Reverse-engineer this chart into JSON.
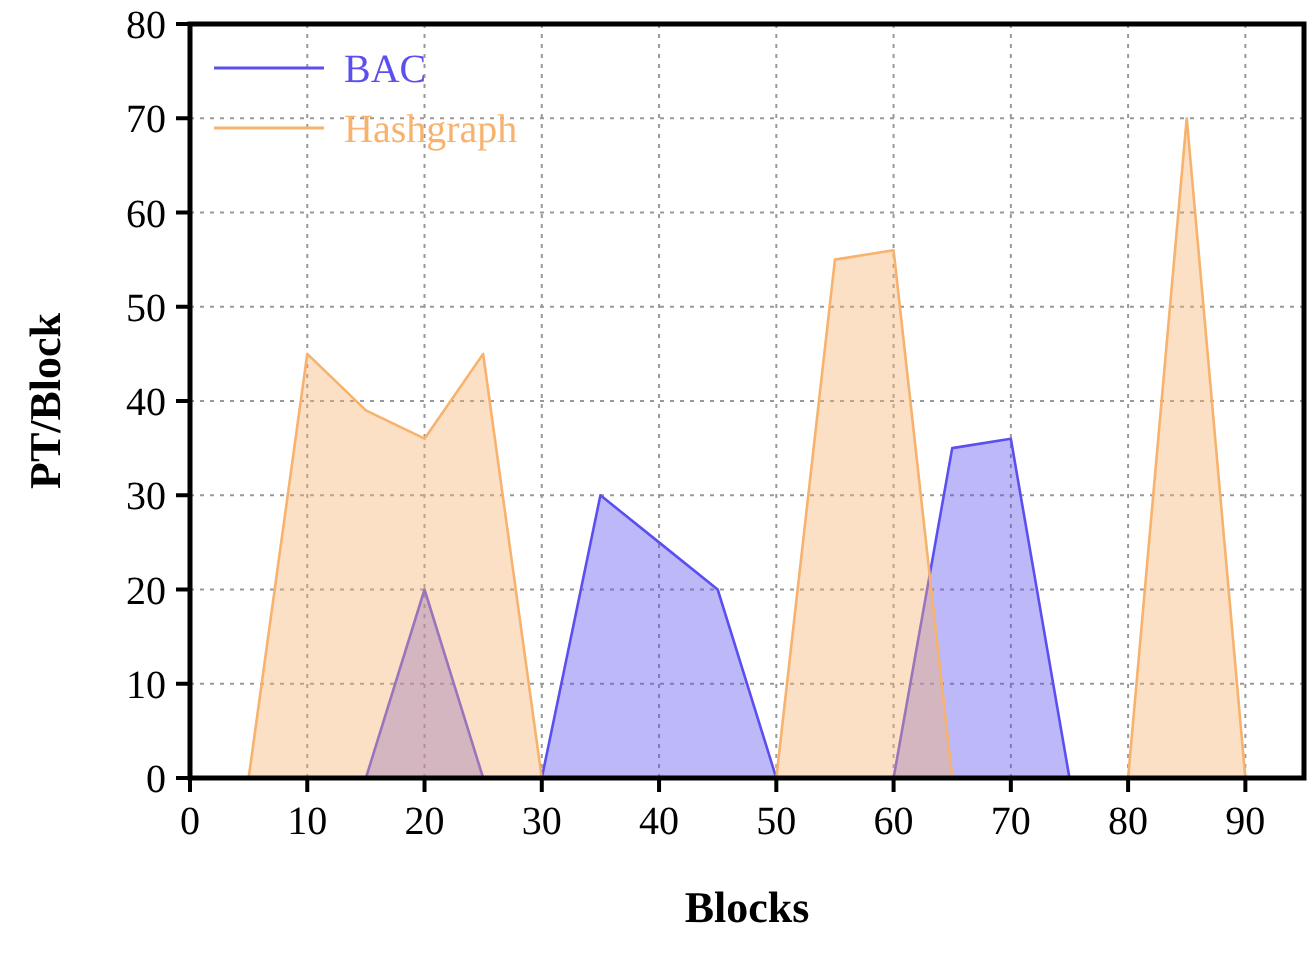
{
  "chart_data": {
    "type": "area",
    "xlabel": "Blocks",
    "ylabel": "PT/Block",
    "x": [
      5,
      10,
      15,
      20,
      25,
      30,
      35,
      40,
      45,
      50,
      55,
      60,
      65,
      70,
      75,
      80,
      85,
      90,
      95
    ],
    "series": [
      {
        "name": "BAC",
        "color": "#5b4ff0",
        "values": [
          0,
          0,
          0,
          20,
          0,
          0,
          30,
          25,
          20,
          0,
          0,
          0,
          35,
          36,
          0,
          0,
          0,
          0,
          0
        ]
      },
      {
        "name": "Hashgraph",
        "color": "#f7b26e",
        "values": [
          0,
          45,
          39,
          36,
          45,
          0,
          0,
          0,
          0,
          0,
          55,
          56,
          0,
          0,
          0,
          0,
          70,
          0,
          0
        ]
      }
    ],
    "xlim": [
      0,
      95
    ],
    "ylim": [
      0,
      80
    ],
    "xticks": [
      0,
      10,
      20,
      30,
      40,
      50,
      60,
      70,
      80,
      90
    ],
    "yticks": [
      0,
      10,
      20,
      30,
      40,
      50,
      60,
      70,
      80
    ],
    "grid": true,
    "legend": "top left"
  }
}
